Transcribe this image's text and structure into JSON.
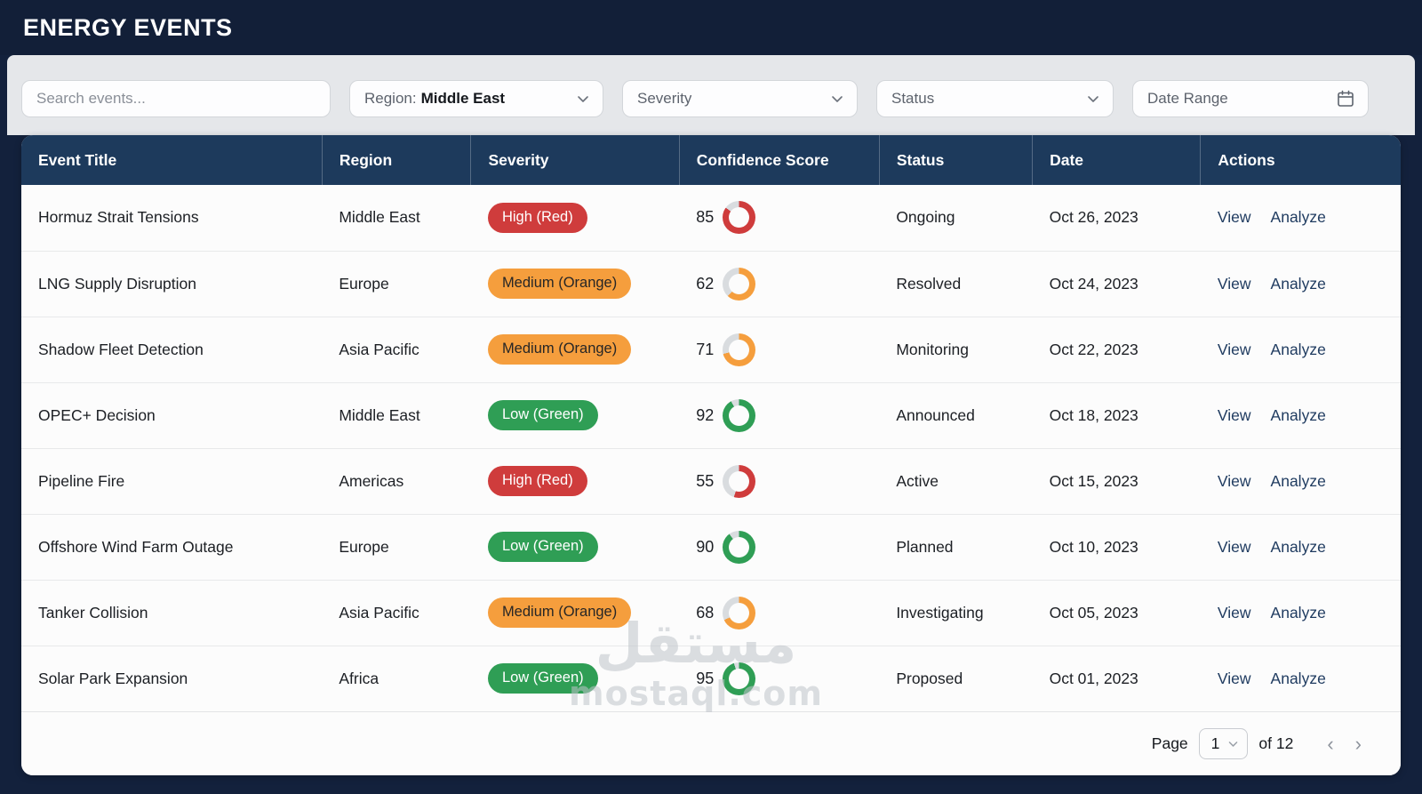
{
  "app": {
    "title": "ENERGY EVENTS"
  },
  "filters": {
    "search_placeholder": "Search events...",
    "region_label": "Region:",
    "region_value": "Middle East",
    "severity_label": "Severity",
    "status_label": "Status",
    "date_range_label": "Date Range"
  },
  "table": {
    "columns": [
      "Event Title",
      "Region",
      "Severity",
      "Confidence Score",
      "Status",
      "Date",
      "Actions"
    ],
    "actions": {
      "view": "View",
      "analyze": "Analyze"
    },
    "rows": [
      {
        "title": "Hormuz Strait Tensions",
        "region": "Middle East",
        "severity": "High (Red)",
        "severity_level": "high",
        "score": 85,
        "status": "Ongoing",
        "date": "Oct 26, 2023"
      },
      {
        "title": "LNG Supply Disruption",
        "region": "Europe",
        "severity": "Medium (Orange)",
        "severity_level": "medium",
        "score": 62,
        "status": "Resolved",
        "date": "Oct 24, 2023"
      },
      {
        "title": "Shadow Fleet Detection",
        "region": "Asia Pacific",
        "severity": "Medium (Orange)",
        "severity_level": "medium",
        "score": 71,
        "status": "Monitoring",
        "date": "Oct 22, 2023"
      },
      {
        "title": "OPEC+ Decision",
        "region": "Middle East",
        "severity": "Low (Green)",
        "severity_level": "low",
        "score": 92,
        "status": "Announced",
        "date": "Oct 18, 2023"
      },
      {
        "title": "Pipeline Fire",
        "region": "Americas",
        "severity": "High (Red)",
        "severity_level": "high",
        "score": 55,
        "status": "Active",
        "date": "Oct 15, 2023"
      },
      {
        "title": "Offshore Wind Farm Outage",
        "region": "Europe",
        "severity": "Low (Green)",
        "severity_level": "low",
        "score": 90,
        "status": "Planned",
        "date": "Oct 10, 2023"
      },
      {
        "title": "Tanker Collision",
        "region": "Asia Pacific",
        "severity": "Medium (Orange)",
        "severity_level": "medium",
        "score": 68,
        "status": "Investigating",
        "date": "Oct 05, 2023"
      },
      {
        "title": "Solar Park Expansion",
        "region": "Africa",
        "severity": "Low (Green)",
        "severity_level": "low",
        "score": 95,
        "status": "Proposed",
        "date": "Oct 01, 2023"
      }
    ]
  },
  "severity_colors": {
    "high": {
      "bg": "#cf3c3c",
      "text": "#ffffff"
    },
    "medium": {
      "bg": "#f59e3d",
      "text": "#262626"
    },
    "low": {
      "bg": "#2f9e55",
      "text": "#ffffff"
    }
  },
  "ring_track_color": "#d9dcdf",
  "pagination": {
    "label": "Page",
    "current": "1",
    "of_label": "of 12",
    "prev": "‹",
    "next": "›"
  },
  "watermark": {
    "arabic": "مستقل",
    "domain": "mostaql.com"
  }
}
